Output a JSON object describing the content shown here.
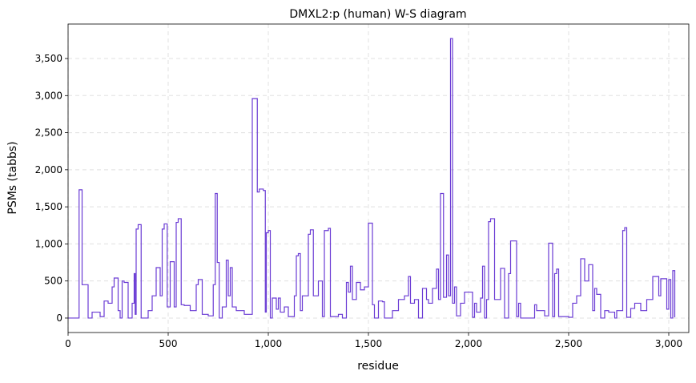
{
  "chart_data": {
    "type": "line",
    "title": "DMXL2:p (human) W-S diagram",
    "x_label": "residue",
    "y_label": "PSMs (tabbs)",
    "color": "#6a3bd4",
    "grid": true,
    "step": true,
    "xlim": [
      0,
      3100
    ],
    "ylim": [
      -195,
      3965
    ],
    "xticks": [
      0,
      500,
      {
        "value": 1000,
        "label": "1,000"
      },
      {
        "value": 1500,
        "label": "1,500"
      },
      {
        "value": 2000,
        "label": "2,000"
      },
      {
        "value": 2500,
        "label": "2,500"
      },
      {
        "value": 3000,
        "label": "3,000"
      }
    ],
    "yticks": [
      0,
      500,
      {
        "value": 1000,
        "label": "1,000"
      },
      {
        "value": 1500,
        "label": "1,500"
      },
      {
        "value": 2000,
        "label": "2,000"
      },
      {
        "value": 2500,
        "label": "2,500"
      },
      {
        "value": 3000,
        "label": "3,000"
      },
      {
        "value": 3500,
        "label": "3,500"
      }
    ],
    "x": [
      0,
      55,
      70,
      100,
      120,
      160,
      180,
      200,
      220,
      230,
      250,
      260,
      270,
      280,
      300,
      320,
      330,
      335,
      340,
      350,
      365,
      400,
      420,
      440,
      460,
      470,
      480,
      495,
      510,
      530,
      540,
      550,
      565,
      580,
      610,
      640,
      650,
      670,
      700,
      725,
      735,
      745,
      755,
      770,
      790,
      800,
      810,
      820,
      840,
      880,
      920,
      945,
      955,
      975,
      985,
      990,
      1000,
      1010,
      1020,
      1040,
      1050,
      1060,
      1080,
      1100,
      1130,
      1140,
      1150,
      1160,
      1170,
      1200,
      1210,
      1225,
      1250,
      1270,
      1280,
      1300,
      1310,
      1350,
      1370,
      1390,
      1400,
      1410,
      1420,
      1440,
      1460,
      1480,
      1500,
      1520,
      1530,
      1550,
      1570,
      1580,
      1620,
      1650,
      1680,
      1700,
      1710,
      1730,
      1750,
      1770,
      1790,
      1800,
      1820,
      1840,
      1850,
      1860,
      1875,
      1890,
      1900,
      1910,
      1920,
      1930,
      1940,
      1960,
      1980,
      2020,
      2030,
      2040,
      2060,
      2070,
      2080,
      2090,
      2100,
      2110,
      2130,
      2160,
      2180,
      2200,
      2210,
      2240,
      2250,
      2260,
      2330,
      2340,
      2380,
      2400,
      2420,
      2430,
      2440,
      2450,
      2500,
      2520,
      2540,
      2560,
      2580,
      2600,
      2620,
      2630,
      2640,
      2660,
      2680,
      2700,
      2730,
      2740,
      2770,
      2780,
      2790,
      2810,
      2830,
      2860,
      2890,
      2920,
      2950,
      2960,
      2990,
      3000,
      3010,
      3020,
      3030
    ],
    "values": [
      0,
      1730,
      450,
      0,
      80,
      20,
      230,
      200,
      420,
      540,
      100,
      0,
      500,
      480,
      0,
      200,
      600,
      50,
      1200,
      1260,
      0,
      100,
      300,
      680,
      300,
      1200,
      1270,
      150,
      760,
      150,
      1290,
      1340,
      180,
      170,
      100,
      450,
      520,
      50,
      30,
      450,
      1680,
      750,
      0,
      150,
      780,
      300,
      680,
      150,
      100,
      50,
      2960,
      1700,
      1740,
      1720,
      80,
      1150,
      1180,
      0,
      270,
      120,
      270,
      80,
      150,
      20,
      300,
      840,
      870,
      100,
      300,
      1130,
      1190,
      300,
      500,
      20,
      1180,
      1210,
      20,
      50,
      0,
      480,
      350,
      700,
      250,
      480,
      380,
      420,
      1280,
      180,
      0,
      230,
      220,
      0,
      100,
      250,
      300,
      560,
      200,
      250,
      0,
      400,
      250,
      200,
      400,
      660,
      250,
      1680,
      280,
      850,
      300,
      3770,
      200,
      420,
      30,
      200,
      350,
      10,
      200,
      80,
      270,
      700,
      0,
      250,
      1300,
      1340,
      250,
      670,
      0,
      600,
      1040,
      20,
      200,
      0,
      180,
      100,
      30,
      1010,
      20,
      600,
      660,
      20,
      10,
      200,
      300,
      800,
      500,
      720,
      100,
      400,
      320,
      0,
      100,
      80,
      0,
      100,
      1180,
      1220,
      10,
      130,
      200,
      100,
      250,
      560,
      300,
      530,
      120,
      520,
      0,
      640,
      10
    ]
  }
}
